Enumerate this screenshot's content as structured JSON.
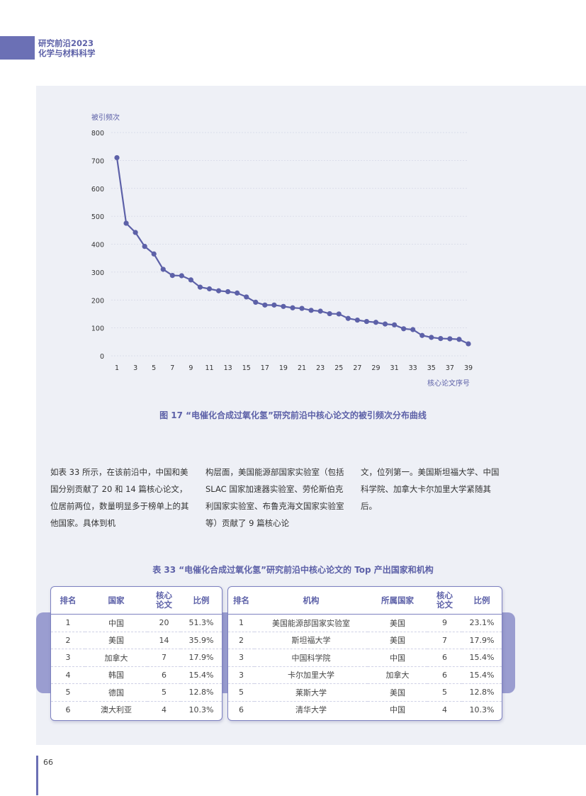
{
  "header": {
    "line1": "研究前沿2023",
    "line2": "化学与材料科学"
  },
  "chart_data": {
    "type": "line",
    "ylabel": "被引频次",
    "xlabel": "核心论文序号",
    "ylim": [
      0,
      800
    ],
    "yticks": [
      0,
      100,
      200,
      300,
      400,
      500,
      600,
      700,
      800
    ],
    "xticks": [
      1,
      3,
      5,
      7,
      9,
      11,
      13,
      15,
      17,
      19,
      21,
      23,
      25,
      27,
      29,
      31,
      33,
      35,
      37,
      39
    ],
    "grid": true,
    "x": [
      1,
      2,
      3,
      4,
      5,
      6,
      7,
      8,
      9,
      10,
      11,
      12,
      13,
      14,
      15,
      16,
      17,
      18,
      19,
      20,
      21,
      22,
      23,
      24,
      25,
      26,
      27,
      28,
      29,
      30,
      31,
      32,
      33,
      34,
      35,
      36,
      37,
      38,
      39
    ],
    "values": [
      710,
      475,
      442,
      392,
      365,
      310,
      288,
      287,
      272,
      246,
      240,
      233,
      230,
      225,
      211,
      192,
      182,
      182,
      177,
      172,
      170,
      163,
      160,
      151,
      150,
      134,
      128,
      123,
      120,
      114,
      111,
      97,
      94,
      73,
      66,
      62,
      61,
      59,
      43
    ],
    "color": "#5d61a8"
  },
  "figure_caption": "图 17 “电催化合成过氧化氢”研究前沿中核心论文的被引频次分布曲线",
  "body_text": {
    "col1": "如表 33 所示，在该前沿中，中国和美国分别贡献了 20 和 14 篇核心论文，位居前两位，数量明显多于榜单上的其他国家。具体到机",
    "col2": "构层面，美国能源部国家实验室（包括 SLAC 国家加速器实验室、劳伦斯伯克利国家实验室、布鲁克海文国家实验室等）贡献了 9 篇核心论",
    "col3": "文，位列第一。美国斯坦福大学、中国科学院、加拿大卡尔加里大学紧随其后。"
  },
  "table_caption": "表 33 “电催化合成过氧化氢”研究前沿中核心论文的 Top 产出国家和机构",
  "country_table": {
    "headers": [
      "排名",
      "国家",
      "核心论文",
      "比例"
    ],
    "rows": [
      [
        "1",
        "中国",
        "20",
        "51.3%"
      ],
      [
        "2",
        "美国",
        "14",
        "35.9%"
      ],
      [
        "3",
        "加拿大",
        "7",
        "17.9%"
      ],
      [
        "4",
        "韩国",
        "6",
        "15.4%"
      ],
      [
        "5",
        "德国",
        "5",
        "12.8%"
      ],
      [
        "6",
        "澳大利亚",
        "4",
        "10.3%"
      ]
    ]
  },
  "institution_table": {
    "headers": [
      "排名",
      "机构",
      "所属国家",
      "核心论文",
      "比例"
    ],
    "rows": [
      [
        "1",
        "美国能源部国家实验室",
        "美国",
        "9",
        "23.1%"
      ],
      [
        "2",
        "斯坦福大学",
        "美国",
        "7",
        "17.9%"
      ],
      [
        "3",
        "中国科学院",
        "中国",
        "6",
        "15.4%"
      ],
      [
        "3",
        "卡尔加里大学",
        "加拿大",
        "6",
        "15.4%"
      ],
      [
        "5",
        "莱斯大学",
        "美国",
        "5",
        "12.8%"
      ],
      [
        "6",
        "清华大学",
        "中国",
        "4",
        "10.3%"
      ]
    ]
  },
  "page_number": "66"
}
